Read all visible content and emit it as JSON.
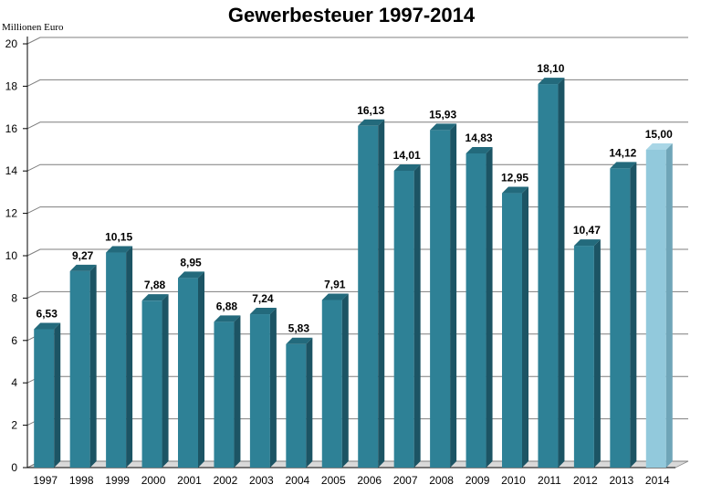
{
  "chart_data": {
    "type": "bar",
    "title": "Gewerbesteuer  1997-2014",
    "ylabel": "Millionen Euro",
    "xlabel": "",
    "ylim": [
      0,
      20
    ],
    "yticks": [
      "0",
      "2",
      "4",
      "6",
      "8",
      "10",
      "12",
      "14",
      "16",
      "18",
      "20"
    ],
    "grid": true,
    "categories": [
      "1997",
      "1998",
      "1999",
      "2000",
      "2001",
      "2002",
      "2003",
      "2004",
      "2005",
      "2006",
      "2007",
      "2008",
      "2009",
      "2010",
      "2011",
      "2012",
      "2013",
      "2014"
    ],
    "values": [
      6.53,
      9.27,
      10.15,
      7.88,
      8.95,
      6.88,
      7.24,
      5.83,
      7.91,
      16.13,
      14.01,
      15.93,
      14.83,
      12.95,
      18.1,
      10.47,
      14.12,
      15.0
    ],
    "value_labels": [
      "6,53",
      "9,27",
      "10,15",
      "7,88",
      "8,95",
      "6,88",
      "7,24",
      "5,83",
      "7,91",
      "16,13",
      "14,01",
      "15,93",
      "14,83",
      "12,95",
      "18,10",
      "10,47",
      "14,12",
      "15,00"
    ],
    "highlight_index": 17,
    "colors": {
      "bar": "#2e8196",
      "bar_side": "#1c5464",
      "bar_top": "#236a7c",
      "highlight": "#92c9dc",
      "highlight_side": "#6fa5b8",
      "highlight_top": "#a9d6e6",
      "grid": "#7f7f7f",
      "wall": "#d9d9d9"
    }
  }
}
